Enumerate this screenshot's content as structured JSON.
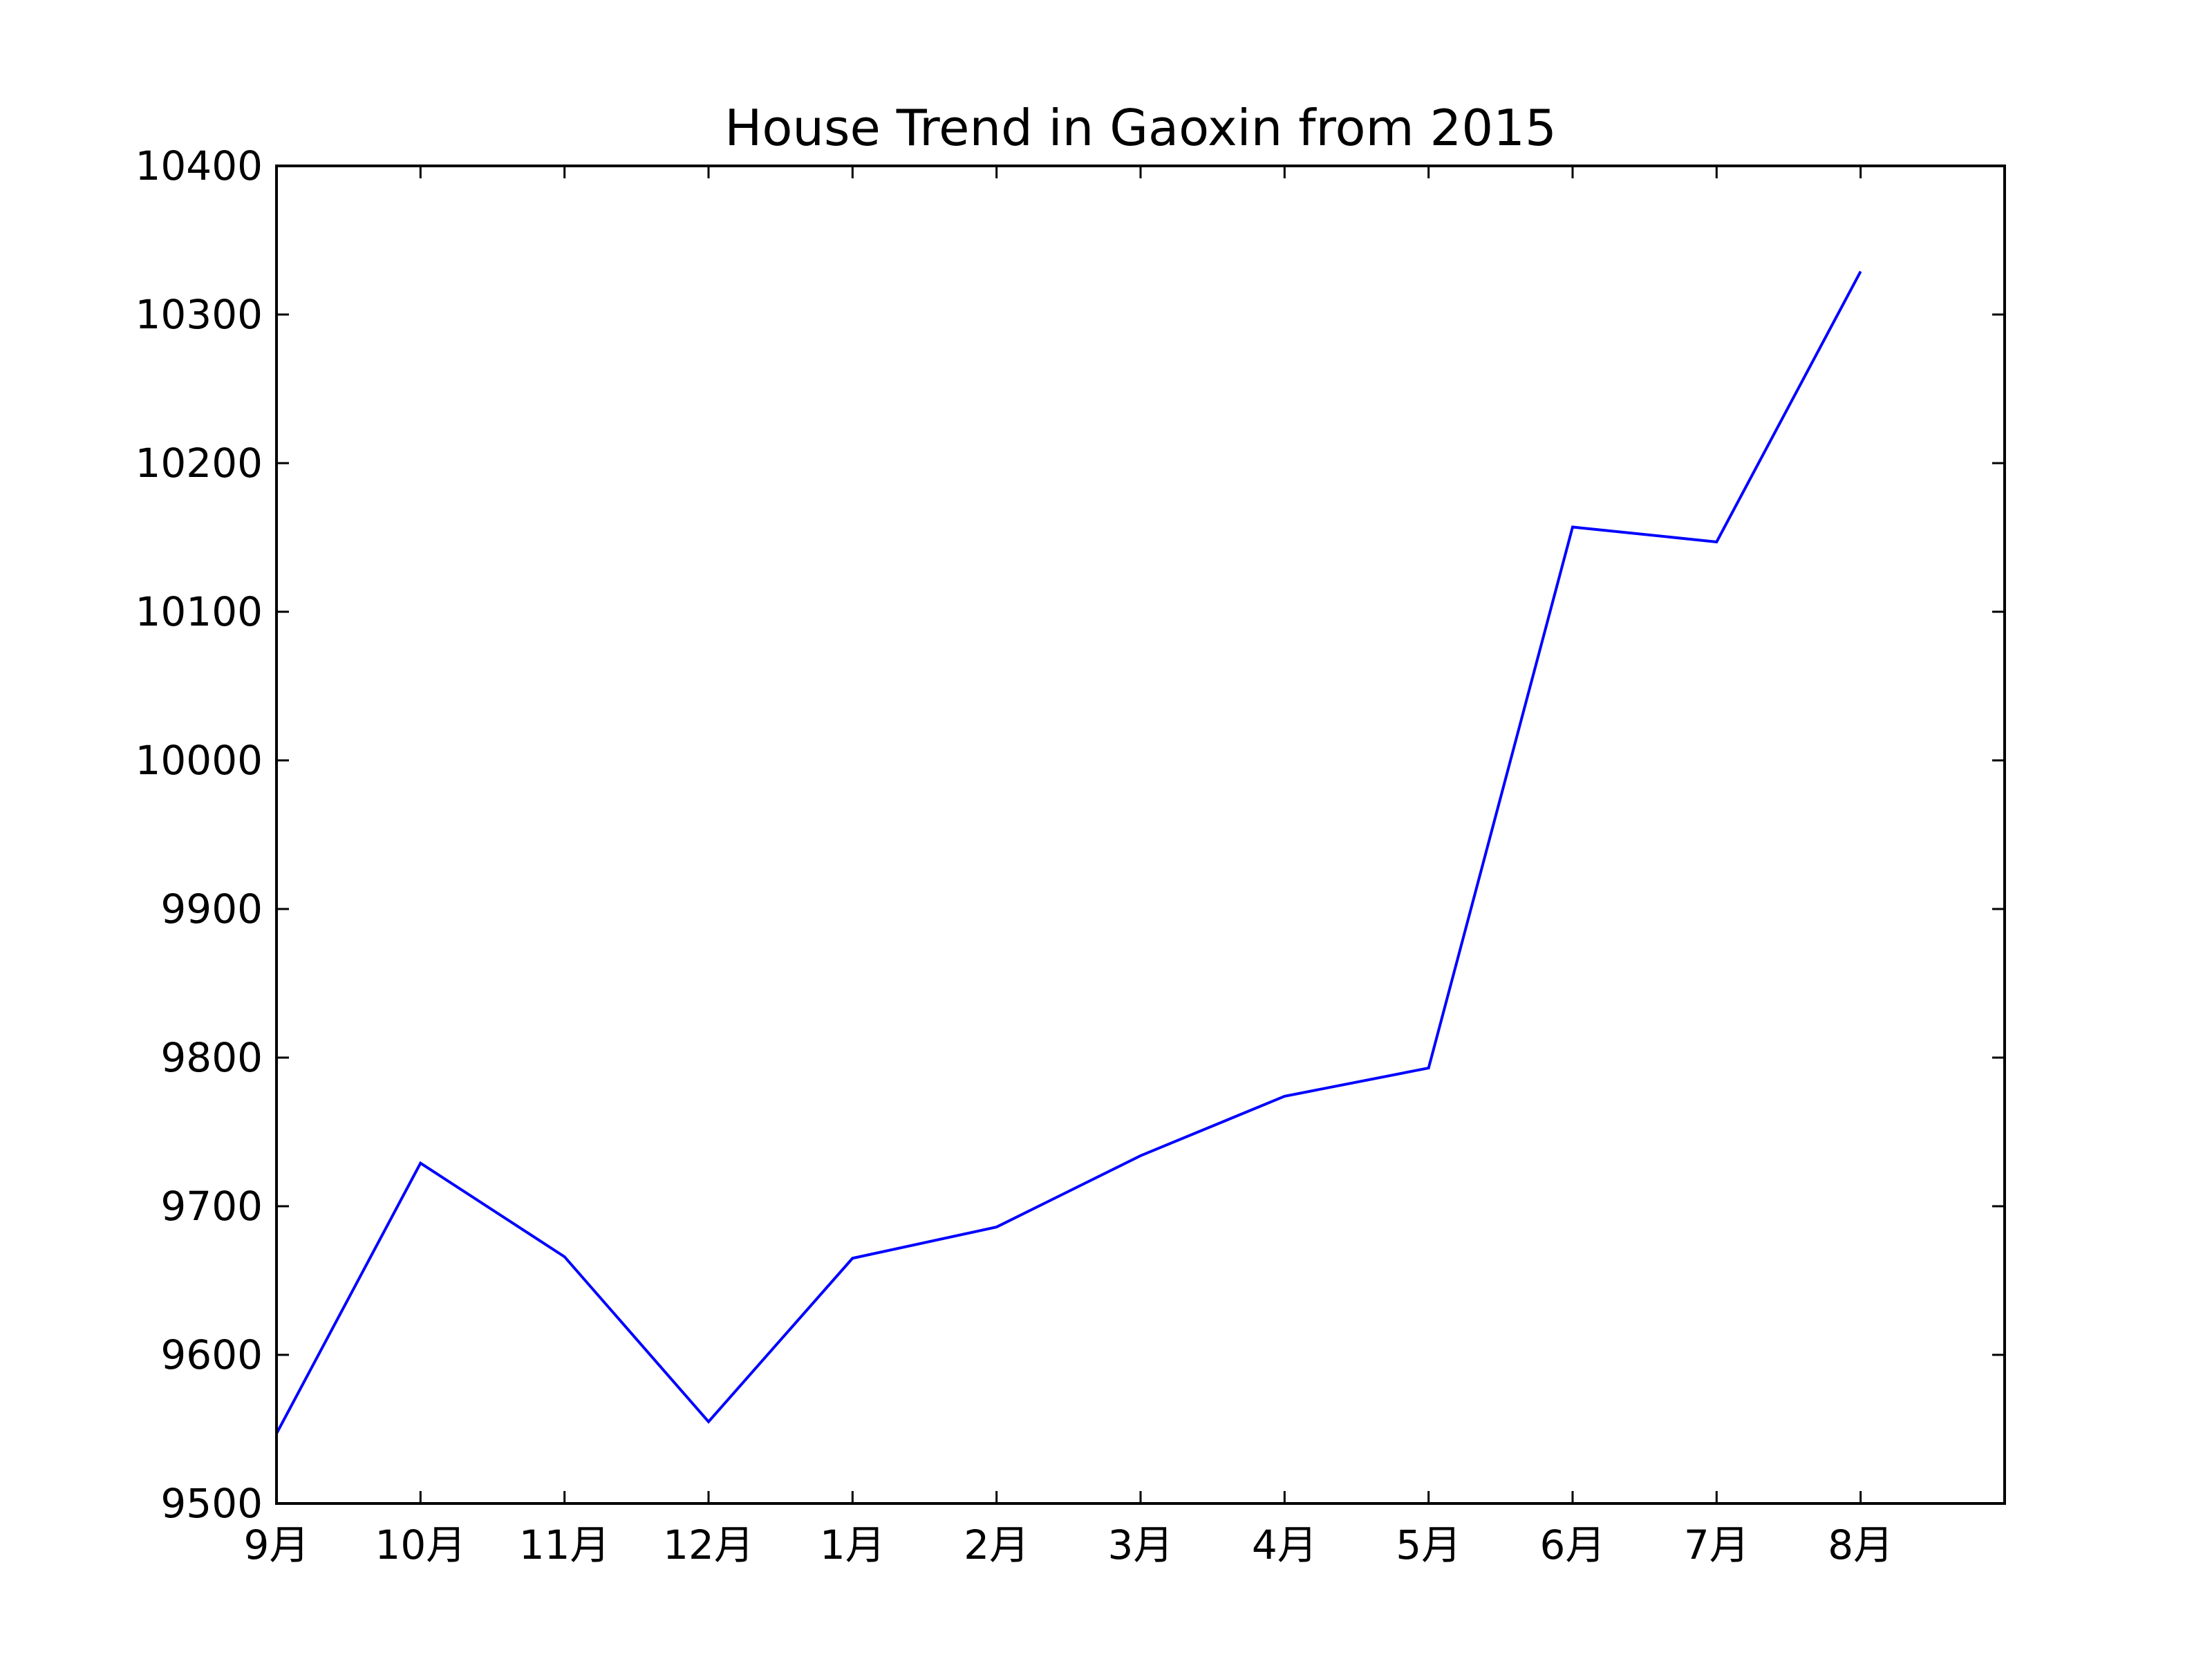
{
  "chart_data": {
    "type": "line",
    "title": "House Trend in Gaoxin from 2015",
    "xlabel": "",
    "ylabel": "",
    "categories": [
      "9月",
      "10月",
      "11月",
      "12月",
      "1月",
      "2月",
      "3月",
      "4月",
      "5月",
      "6月",
      "7月",
      "8月"
    ],
    "series": [
      {
        "values": [
          9547,
          9729,
          9666,
          9555,
          9665,
          9686,
          9734,
          9774,
          9793,
          10157,
          10147,
          10329
        ],
        "color": "#0000ff"
      }
    ],
    "ylim": [
      9500,
      10400
    ],
    "yticks": [
      9500,
      9600,
      9700,
      9800,
      9900,
      10000,
      10100,
      10200,
      10300,
      10400
    ],
    "xlim": [
      0,
      12
    ],
    "grid": false,
    "legend": "none"
  }
}
